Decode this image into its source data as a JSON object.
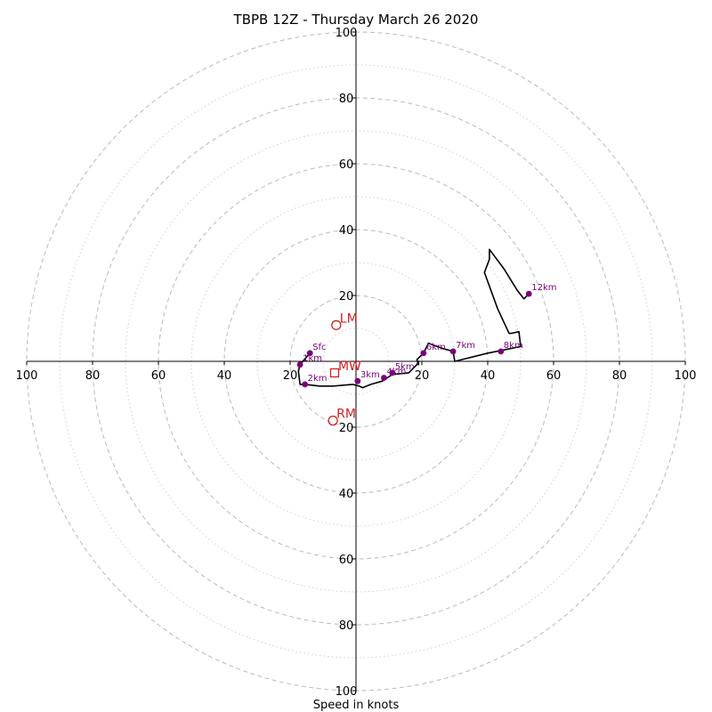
{
  "chart_data": {
    "type": "hodograph",
    "title": "TBPB 12Z - Thursday March 26 2020",
    "xlabel": "Speed in knots",
    "rmax": 100,
    "major_rings": [
      20,
      40,
      60,
      80,
      100
    ],
    "minor_rings": [
      10,
      30,
      50,
      70,
      90
    ],
    "x_ticks": [
      {
        "value": -100,
        "label": "100"
      },
      {
        "value": -80,
        "label": "80"
      },
      {
        "value": -60,
        "label": "60"
      },
      {
        "value": -40,
        "label": "40"
      },
      {
        "value": -20,
        "label": "20"
      },
      {
        "value": 20,
        "label": "20"
      },
      {
        "value": 40,
        "label": "40"
      },
      {
        "value": 60,
        "label": "60"
      },
      {
        "value": 80,
        "label": "80"
      },
      {
        "value": 100,
        "label": "100"
      }
    ],
    "y_ticks": [
      {
        "value": 100,
        "label": "100"
      },
      {
        "value": 80,
        "label": "80"
      },
      {
        "value": 60,
        "label": "60"
      },
      {
        "value": 40,
        "label": "40"
      },
      {
        "value": 20,
        "label": "20"
      },
      {
        "value": -20,
        "label": "20"
      },
      {
        "value": -40,
        "label": "40"
      },
      {
        "value": -60,
        "label": "60"
      },
      {
        "value": -80,
        "label": "80"
      },
      {
        "value": -100,
        "label": "100"
      }
    ],
    "trace": [
      [
        -14,
        2.5
      ],
      [
        -17,
        -1
      ],
      [
        -17.5,
        -3
      ],
      [
        -17,
        -7
      ],
      [
        -15.5,
        -7
      ],
      [
        -11,
        -7.5
      ],
      [
        -7,
        -7.5
      ],
      [
        -1,
        -7
      ],
      [
        1,
        -7.5
      ],
      [
        2,
        -8
      ],
      [
        4.5,
        -7
      ],
      [
        8,
        -6
      ],
      [
        11,
        -4
      ],
      [
        16,
        -3.5
      ],
      [
        18.5,
        -1
      ],
      [
        19,
        0
      ],
      [
        19,
        -1
      ],
      [
        18.5,
        0.5
      ],
      [
        20.5,
        2.5
      ],
      [
        22,
        5.5
      ],
      [
        26,
        4
      ],
      [
        29.5,
        3
      ],
      [
        30,
        0
      ],
      [
        40,
        2.5
      ],
      [
        50,
        4.5
      ],
      [
        49.5,
        9
      ],
      [
        47,
        8.5
      ],
      [
        46.5,
        8.5
      ],
      [
        43,
        16
      ],
      [
        39,
        27
      ],
      [
        40.5,
        31
      ],
      [
        40.5,
        34
      ],
      [
        45,
        28
      ],
      [
        49,
        21.5
      ],
      [
        51,
        19
      ],
      [
        52.5,
        20.5
      ]
    ],
    "height_markers": [
      {
        "label": "Sfc",
        "u": -14,
        "v": 2.5
      },
      {
        "label": "1km",
        "u": -17,
        "v": -1
      },
      {
        "label": "2km",
        "u": -15.5,
        "v": -7
      },
      {
        "label": "3km",
        "u": 0.5,
        "v": -6
      },
      {
        "label": "4km",
        "u": 8.5,
        "v": -5
      },
      {
        "label": "5km",
        "u": 11,
        "v": -3.5
      },
      {
        "label": "6km",
        "u": 20.5,
        "v": 2.5
      },
      {
        "label": "7km",
        "u": 29.5,
        "v": 3
      },
      {
        "label": "8km",
        "u": 44,
        "v": 3
      },
      {
        "label": "12km",
        "u": 52.5,
        "v": 20.5
      }
    ],
    "motion_markers": [
      {
        "label": "LM",
        "u": -6,
        "v": 11,
        "shape": "circle"
      },
      {
        "label": "RM",
        "u": -7,
        "v": -18,
        "shape": "circle"
      },
      {
        "label": "MW",
        "u": -6.5,
        "v": -3.5,
        "shape": "square"
      }
    ],
    "colors": {
      "trace": "#000000",
      "markers": "#7b007b",
      "storm_motion": "#cc2222",
      "grid": "#c0c0c0"
    }
  }
}
